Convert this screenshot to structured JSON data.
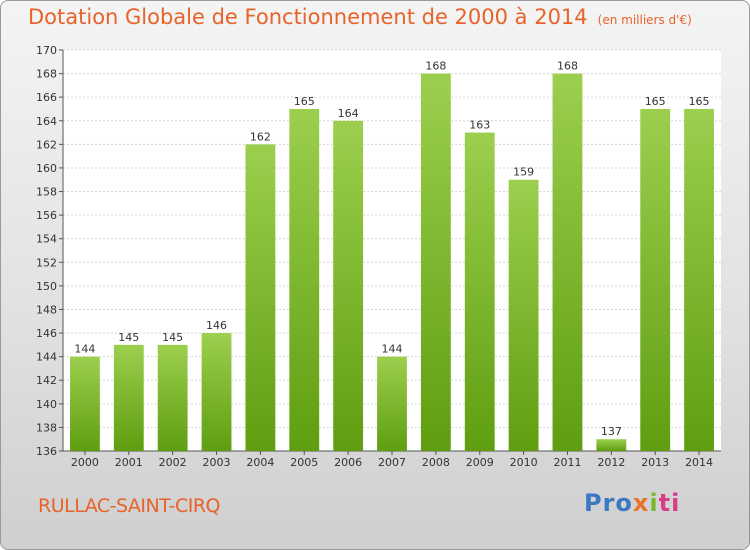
{
  "header": {
    "title": "Dotation Globale de Fonctionnement de 2000 à 2014",
    "unit": "(en milliers d'€)"
  },
  "footer": {
    "place": "RULLAC-SAINT-CIRQ",
    "logo_parts": [
      "Pro",
      "x",
      "i",
      "ti"
    ]
  },
  "colors": {
    "bar_top": "#9ccf4e",
    "bar_bottom": "#5f9e10",
    "title": "#e8622a"
  },
  "chart_data": {
    "type": "bar",
    "title": "Dotation Globale de Fonctionnement de 2000 à 2014",
    "subtitle": "(en milliers d'€)",
    "xlabel": "",
    "ylabel": "",
    "categories": [
      "2000",
      "2001",
      "2002",
      "2003",
      "2004",
      "2005",
      "2006",
      "2007",
      "2008",
      "2009",
      "2010",
      "2011",
      "2012",
      "2013",
      "2014"
    ],
    "values": [
      144,
      145,
      145,
      146,
      162,
      165,
      164,
      144,
      168,
      163,
      159,
      168,
      137,
      165,
      165
    ],
    "ylim": [
      136,
      170
    ],
    "yticks": [
      136,
      138,
      140,
      142,
      144,
      146,
      148,
      150,
      152,
      154,
      156,
      158,
      160,
      162,
      164,
      166,
      168,
      170
    ],
    "grid": true,
    "data_labels": true
  }
}
